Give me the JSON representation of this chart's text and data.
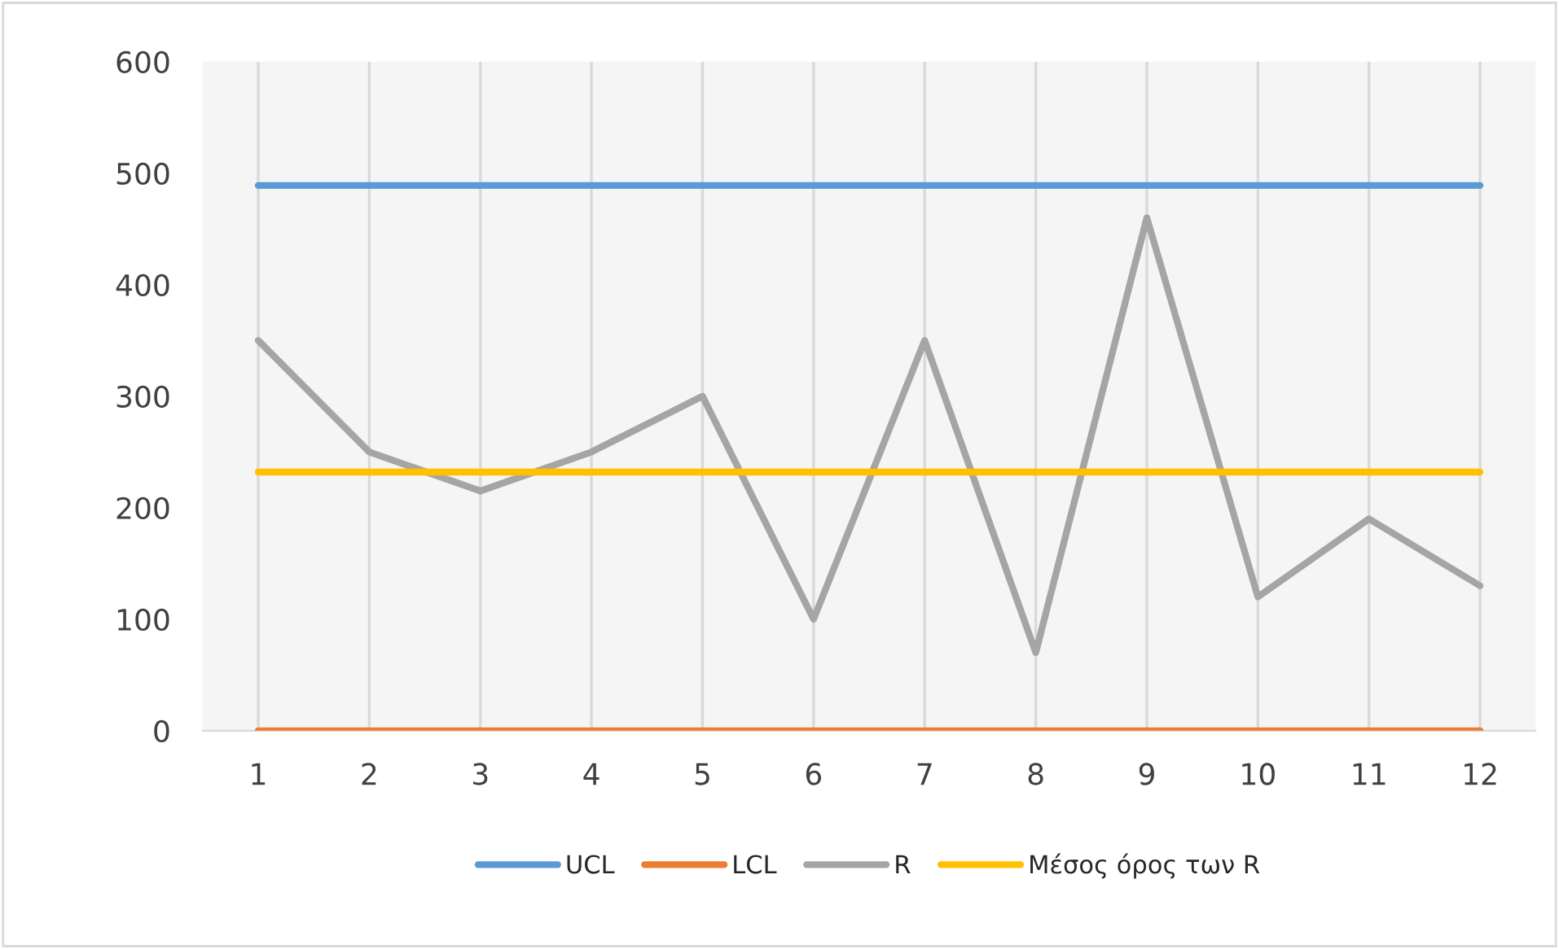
{
  "chart_data": {
    "type": "line",
    "categories": [
      "1",
      "2",
      "3",
      "4",
      "5",
      "6",
      "7",
      "8",
      "9",
      "10",
      "11",
      "12"
    ],
    "series": [
      {
        "name": "UCL",
        "color": "#5b9bd5",
        "values": [
          489,
          489,
          489,
          489,
          489,
          489,
          489,
          489,
          489,
          489,
          489,
          489
        ]
      },
      {
        "name": "LCL",
        "color": "#ed7d31",
        "values": [
          0,
          0,
          0,
          0,
          0,
          0,
          0,
          0,
          0,
          0,
          0,
          0
        ]
      },
      {
        "name": "R",
        "color": "#a5a5a5",
        "values": [
          350,
          250,
          215,
          250,
          300,
          100,
          350,
          70,
          460,
          120,
          190,
          130
        ]
      },
      {
        "name": "Μέσος όρος των R",
        "color": "#ffc000",
        "values": [
          232,
          232,
          232,
          232,
          232,
          232,
          232,
          232,
          232,
          232,
          232,
          232
        ]
      }
    ],
    "ylim": [
      0,
      600
    ],
    "yticks": [
      0,
      100,
      200,
      300,
      400,
      500,
      600
    ],
    "grid": "x",
    "legend": "bottom",
    "marker": "none",
    "line_style": "solid"
  }
}
